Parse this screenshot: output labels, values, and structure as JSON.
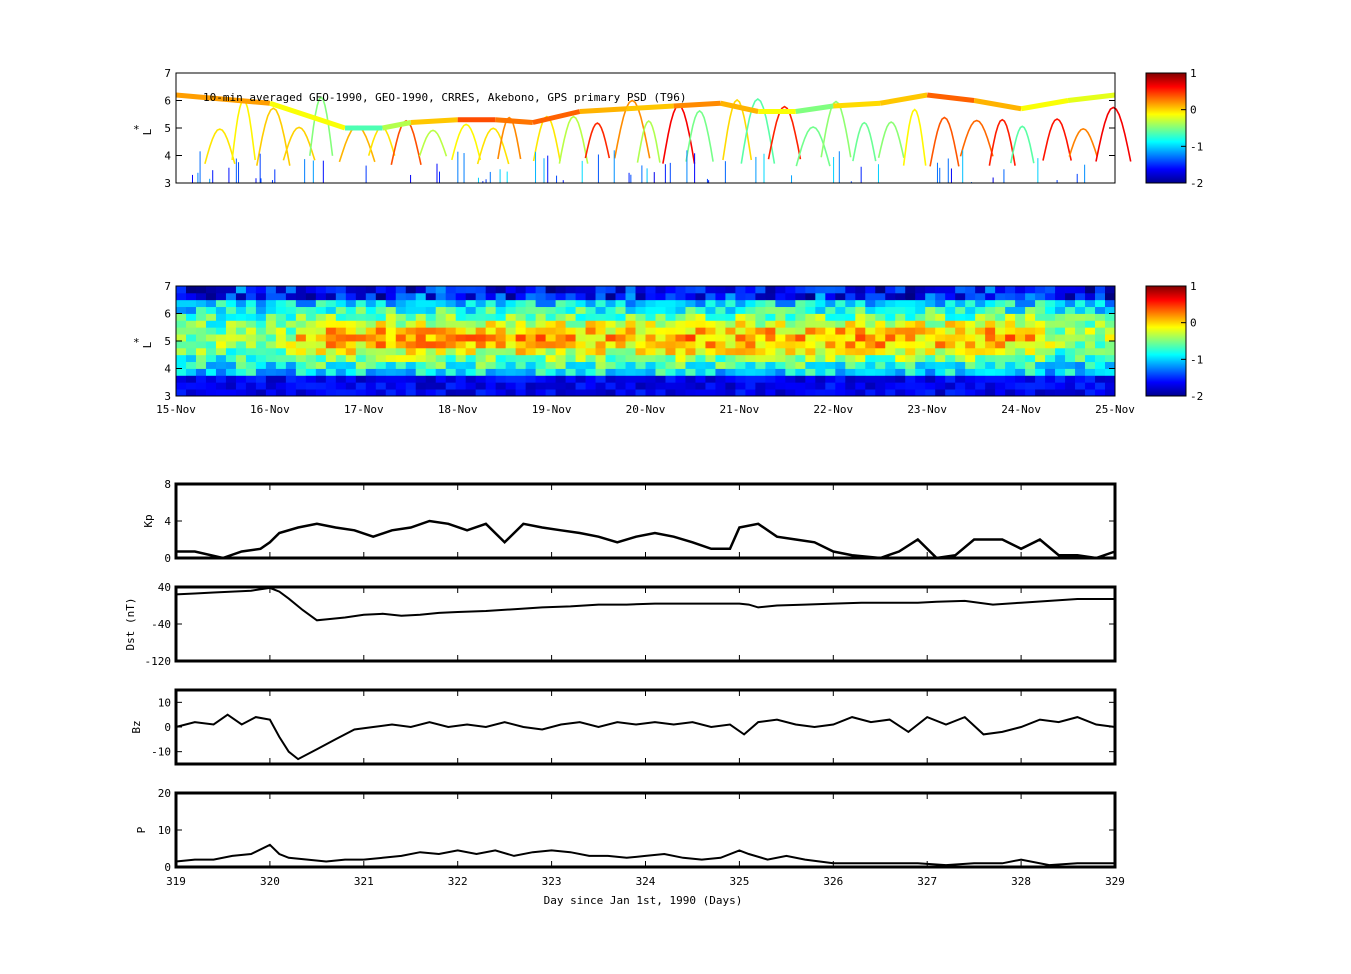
{
  "chart_data": [
    {
      "type": "scatter",
      "id": "psd-primary",
      "title": "10-min averaged GEO-1990, GEO-1990, CRRES, Akebono, GPS  primary PSD (T96)",
      "ylabel": "L",
      "ylabel_mark": "*",
      "ylim": [
        3,
        7
      ],
      "yticks": [
        "3",
        "4",
        "5",
        "6",
        "7"
      ],
      "xlim": [
        319,
        329
      ],
      "colorbar": {
        "range": [
          -2,
          1
        ],
        "ticks": [
          "1",
          "0",
          "-1",
          "-2"
        ],
        "colormap": "jet"
      },
      "grid": false
    },
    {
      "type": "heatmap",
      "id": "psd-assimilated",
      "ylabel": "L",
      "ylabel_mark": "*",
      "ylim": [
        3,
        7
      ],
      "yticks": [
        "3",
        "4",
        "5",
        "6",
        "7"
      ],
      "xlim": [
        319,
        329
      ],
      "xticks": [
        "15-Nov",
        "16-Nov",
        "17-Nov",
        "18-Nov",
        "19-Nov",
        "20-Nov",
        "21-Nov",
        "22-Nov",
        "23-Nov",
        "24-Nov",
        "25-Nov"
      ],
      "colorbar": {
        "range": [
          -2,
          1
        ],
        "ticks": [
          "1",
          "0",
          "-1",
          "-2"
        ],
        "colormap": "jet"
      },
      "grid": false
    },
    {
      "type": "line",
      "id": "kp",
      "ylabel": "Kp",
      "ylim": [
        0,
        8
      ],
      "yticks": [
        "0",
        "4",
        "8"
      ],
      "xlim": [
        319,
        329
      ],
      "x": [
        319.0,
        319.2,
        319.5,
        319.7,
        319.9,
        320.0,
        320.1,
        320.3,
        320.5,
        320.7,
        320.9,
        321.1,
        321.3,
        321.5,
        321.7,
        321.9,
        322.1,
        322.3,
        322.5,
        322.7,
        322.9,
        323.1,
        323.3,
        323.5,
        323.7,
        323.9,
        324.1,
        324.3,
        324.5,
        324.7,
        324.9,
        325.0,
        325.2,
        325.4,
        325.6,
        325.8,
        326.0,
        326.2,
        326.5,
        326.7,
        326.9,
        327.1,
        327.3,
        327.5,
        327.8,
        328.0,
        328.2,
        328.4,
        328.6,
        328.8,
        329.0
      ],
      "y": [
        0.7,
        0.7,
        0.0,
        0.7,
        1.0,
        1.7,
        2.7,
        3.3,
        3.7,
        3.3,
        3.0,
        2.3,
        3.0,
        3.3,
        4.0,
        3.7,
        3.0,
        3.7,
        1.7,
        3.7,
        3.3,
        3.0,
        2.7,
        2.3,
        1.7,
        2.3,
        2.7,
        2.3,
        1.7,
        1.0,
        1.0,
        3.3,
        3.7,
        2.3,
        2.0,
        1.7,
        0.7,
        0.3,
        0.0,
        0.7,
        2.0,
        0.0,
        0.3,
        2.0,
        2.0,
        1.0,
        2.0,
        0.3,
        0.3,
        0.0,
        0.7
      ]
    },
    {
      "type": "line",
      "id": "dst",
      "ylabel": "Dst (nT)",
      "ylim": [
        -120,
        40
      ],
      "yticks": [
        "-120",
        "-40",
        "40"
      ],
      "xlim": [
        319,
        329
      ],
      "x": [
        319.0,
        319.2,
        319.4,
        319.6,
        319.8,
        320.0,
        320.1,
        320.2,
        320.35,
        320.5,
        320.6,
        320.8,
        321.0,
        321.2,
        321.4,
        321.6,
        321.8,
        322.0,
        322.3,
        322.6,
        322.9,
        323.2,
        323.5,
        323.8,
        324.1,
        324.4,
        324.7,
        325.0,
        325.1,
        325.2,
        325.4,
        325.7,
        326.0,
        326.3,
        326.6,
        326.9,
        327.1,
        327.4,
        327.7,
        328.0,
        328.3,
        328.6,
        328.9,
        329.0
      ],
      "y": [
        24,
        26,
        28,
        30,
        32,
        38,
        30,
        15,
        -10,
        -32,
        -30,
        -26,
        -20,
        -18,
        -22,
        -20,
        -16,
        -14,
        -12,
        -8,
        -4,
        -2,
        2,
        2,
        4,
        4,
        4,
        4,
        2,
        -4,
        0,
        2,
        4,
        6,
        6,
        6,
        8,
        10,
        2,
        6,
        10,
        14,
        14,
        14
      ]
    },
    {
      "type": "line",
      "id": "bz",
      "ylabel": "Bz",
      "ylim": [
        -15,
        15
      ],
      "yticks": [
        "-10",
        "0",
        "10"
      ],
      "xlim": [
        319,
        329
      ],
      "x": [
        319.0,
        319.2,
        319.4,
        319.55,
        319.7,
        319.85,
        320.0,
        320.1,
        320.2,
        320.3,
        320.5,
        320.7,
        320.9,
        321.1,
        321.3,
        321.5,
        321.7,
        321.9,
        322.1,
        322.3,
        322.5,
        322.7,
        322.9,
        323.1,
        323.3,
        323.5,
        323.7,
        323.9,
        324.1,
        324.3,
        324.5,
        324.7,
        324.9,
        325.05,
        325.2,
        325.4,
        325.6,
        325.8,
        326.0,
        326.2,
        326.4,
        326.6,
        326.8,
        327.0,
        327.2,
        327.4,
        327.6,
        327.8,
        328.0,
        328.2,
        328.4,
        328.6,
        328.8,
        329.0
      ],
      "y": [
        0,
        2,
        1,
        5,
        1,
        4,
        3,
        -4,
        -10,
        -13,
        -9,
        -5,
        -1,
        0,
        1,
        0,
        2,
        0,
        1,
        0,
        2,
        0,
        -1,
        1,
        2,
        0,
        2,
        1,
        2,
        1,
        2,
        0,
        1,
        -3,
        2,
        3,
        1,
        0,
        1,
        4,
        2,
        3,
        -2,
        4,
        1,
        4,
        -3,
        -2,
        0,
        3,
        2,
        4,
        1,
        0
      ]
    },
    {
      "type": "line",
      "id": "pressure",
      "ylabel": "P",
      "ylim": [
        0,
        20
      ],
      "yticks": [
        "0",
        "10",
        "20"
      ],
      "xlim": [
        319,
        329
      ],
      "xticks": [
        "319",
        "320",
        "321",
        "322",
        "323",
        "324",
        "325",
        "326",
        "327",
        "328",
        "329"
      ],
      "xlabel": "Day since Jan 1st, 1990 (Days)",
      "x": [
        319.0,
        319.2,
        319.4,
        319.6,
        319.8,
        320.0,
        320.1,
        320.2,
        320.4,
        320.6,
        320.8,
        321.0,
        321.2,
        321.4,
        321.6,
        321.8,
        322.0,
        322.2,
        322.4,
        322.6,
        322.8,
        323.0,
        323.2,
        323.4,
        323.6,
        323.8,
        324.0,
        324.2,
        324.4,
        324.6,
        324.8,
        325.0,
        325.1,
        325.3,
        325.5,
        325.7,
        326.0,
        326.3,
        326.6,
        326.9,
        327.2,
        327.5,
        327.8,
        328.0,
        328.3,
        328.6,
        329.0
      ],
      "y": [
        1.5,
        2,
        2,
        3,
        3.5,
        6,
        3.5,
        2.5,
        2,
        1.5,
        2,
        2,
        2.5,
        3,
        4,
        3.5,
        4.5,
        3.5,
        4.5,
        3,
        4,
        4.5,
        4,
        3,
        3,
        2.5,
        3,
        3.5,
        2.5,
        2,
        2.5,
        4.5,
        3.5,
        2,
        3,
        2,
        1,
        1,
        1,
        1,
        0.5,
        1,
        1,
        2,
        0.5,
        1,
        1
      ]
    }
  ]
}
